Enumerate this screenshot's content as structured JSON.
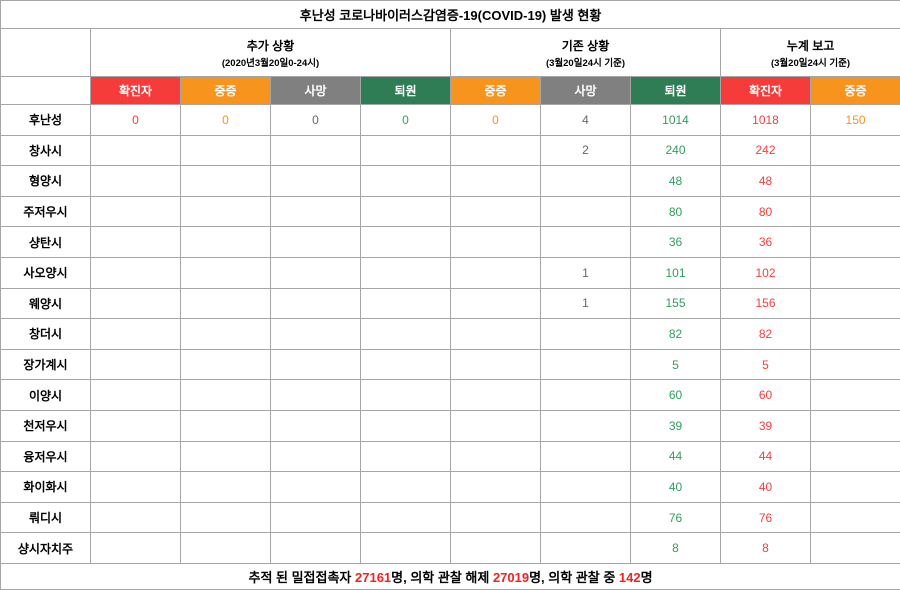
{
  "title": "후난성 코로나바이러스감염증-19(COVID-19) 발생 현황",
  "colors": {
    "confirmed_header": "#f63b3b",
    "severe_header": "#f7941e",
    "death_header": "#808080",
    "discharged_header": "#2e7d54",
    "confirmed_text": "#f53e3e",
    "severe_text": "#f7941e",
    "death_text": "#666666",
    "discharged_text": "#2f9e5f",
    "border": "#a6a6a6"
  },
  "header": {
    "groups": [
      {
        "label": "추가 상황",
        "sub": "(2020년3월20일0-24시)",
        "span": 4
      },
      {
        "label": "기존 상황",
        "sub": "(3월20일24시 기준)",
        "span": 3
      },
      {
        "label": "누계 보고",
        "sub": "(3월20일24시 기준)",
        "span": 2
      }
    ],
    "columns": [
      {
        "key": "add-confirmed",
        "label": "확진자",
        "type": "confirmed"
      },
      {
        "key": "add-severe",
        "label": "중증",
        "type": "severe"
      },
      {
        "key": "add-death",
        "label": "사망",
        "type": "death"
      },
      {
        "key": "add-discharged",
        "label": "퇴원",
        "type": "discharged"
      },
      {
        "key": "cur-severe",
        "label": "중증",
        "type": "severe"
      },
      {
        "key": "cur-death",
        "label": "사망",
        "type": "death"
      },
      {
        "key": "cur-discharged",
        "label": "퇴원",
        "type": "discharged"
      },
      {
        "key": "cum-confirmed",
        "label": "확진자",
        "type": "confirmed"
      },
      {
        "key": "cum-severe",
        "label": "중증",
        "type": "severe"
      }
    ]
  },
  "rows": [
    {
      "region": "후난성",
      "values": [
        "0",
        "0",
        "0",
        "0",
        "0",
        "4",
        "1014",
        "1018",
        "150"
      ]
    },
    {
      "region": "창사시",
      "values": [
        "",
        "",
        "",
        "",
        "",
        "2",
        "240",
        "242",
        ""
      ]
    },
    {
      "region": "형양시",
      "values": [
        "",
        "",
        "",
        "",
        "",
        "",
        "48",
        "48",
        ""
      ]
    },
    {
      "region": "주저우시",
      "values": [
        "",
        "",
        "",
        "",
        "",
        "",
        "80",
        "80",
        ""
      ]
    },
    {
      "region": "샹탄시",
      "values": [
        "",
        "",
        "",
        "",
        "",
        "",
        "36",
        "36",
        ""
      ]
    },
    {
      "region": "사오양시",
      "values": [
        "",
        "",
        "",
        "",
        "",
        "1",
        "101",
        "102",
        ""
      ]
    },
    {
      "region": "웨양시",
      "values": [
        "",
        "",
        "",
        "",
        "",
        "1",
        "155",
        "156",
        ""
      ]
    },
    {
      "region": "창더시",
      "values": [
        "",
        "",
        "",
        "",
        "",
        "",
        "82",
        "82",
        ""
      ]
    },
    {
      "region": "장가계시",
      "values": [
        "",
        "",
        "",
        "",
        "",
        "",
        "5",
        "5",
        ""
      ]
    },
    {
      "region": "이양시",
      "values": [
        "",
        "",
        "",
        "",
        "",
        "",
        "60",
        "60",
        ""
      ]
    },
    {
      "region": "천저우시",
      "values": [
        "",
        "",
        "",
        "",
        "",
        "",
        "39",
        "39",
        ""
      ]
    },
    {
      "region": "융저우시",
      "values": [
        "",
        "",
        "",
        "",
        "",
        "",
        "44",
        "44",
        ""
      ]
    },
    {
      "region": "화이화시",
      "values": [
        "",
        "",
        "",
        "",
        "",
        "",
        "40",
        "40",
        ""
      ]
    },
    {
      "region": "뤄디시",
      "values": [
        "",
        "",
        "",
        "",
        "",
        "",
        "76",
        "76",
        ""
      ]
    },
    {
      "region": "샹시자치주",
      "values": [
        "",
        "",
        "",
        "",
        "",
        "",
        "8",
        "8",
        ""
      ]
    }
  ],
  "footer": {
    "segments": [
      {
        "text": "추적 된 밀접접촉자 ",
        "red": false
      },
      {
        "text": "27161",
        "red": true
      },
      {
        "text": "명, 의학 관찰 해제 ",
        "red": false
      },
      {
        "text": "27019",
        "red": true
      },
      {
        "text": "명, 의학 관찰 중 ",
        "red": false
      },
      {
        "text": "142",
        "red": true
      },
      {
        "text": "명",
        "red": false
      }
    ]
  }
}
